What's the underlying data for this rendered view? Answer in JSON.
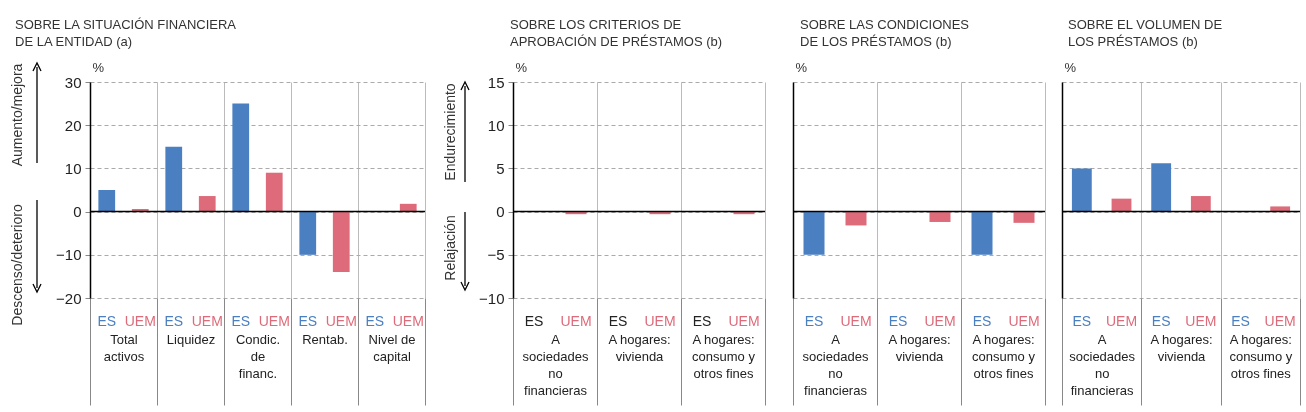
{
  "chart_data": [
    {
      "type": "bar",
      "title": "SOBRE LA SITUACIÓN FINANCIERA DE LA ENTIDAD (a)",
      "ylabel": "%",
      "categories": [
        "Total activos",
        "Liquidez",
        "Condic. de financ.",
        "Rentab.",
        "Nivel de capital"
      ],
      "series": [
        {
          "name": "ES",
          "color": "#4a7fc1",
          "values": [
            5,
            15,
            25,
            -10,
            0
          ]
        },
        {
          "name": "UEM",
          "color": "#dd6b7a",
          "values": [
            0.6,
            3.6,
            9,
            -14,
            1.8
          ]
        }
      ],
      "ylim": [
        -20,
        30
      ],
      "yticks": [
        -20,
        -10,
        0,
        10,
        20,
        30
      ],
      "grid": true,
      "legend": false,
      "ref_lines": [
        {
          "axis": "y",
          "value": 0,
          "color": "#000000"
        }
      ],
      "annotations": [
        "Aumento/mejora",
        "Descenso/deterioro"
      ]
    },
    {
      "type": "bar",
      "title": "SOBRE LOS CRITERIOS DE APROBACIÓN DE PRÉSTAMOS (b)",
      "ylabel": "%",
      "categories": [
        "A sociedades no financieras",
        "A hogares: vivienda",
        "A hogares: consumo y otros fines"
      ],
      "series": [
        {
          "name": "ES",
          "values": [
            0,
            0,
            0
          ]
        },
        {
          "name": "UEM",
          "color": "#dd6b7a",
          "values": [
            -0.3,
            -0.3,
            -0.3
          ]
        }
      ],
      "ylim": [
        -10,
        15
      ],
      "yticks": [
        -10,
        -5,
        0,
        5,
        10,
        15
      ],
      "grid": true,
      "legend": false,
      "ref_lines": [
        {
          "axis": "y",
          "value": 0,
          "color": "#000000"
        }
      ],
      "annotations": [
        "Endurecimiento",
        "Relajación"
      ]
    },
    {
      "type": "bar",
      "title": "SOBRE LAS CONDICIONES DE LOS PRÉSTAMOS (b)",
      "ylabel": "%",
      "categories": [
        "A sociedades no financieras",
        "A hogares: vivienda",
        "A hogares: consumo y otros fines"
      ],
      "series": [
        {
          "name": "ES",
          "color": "#4a7fc1",
          "values": [
            -5,
            0,
            -5
          ]
        },
        {
          "name": "UEM",
          "color": "#dd6b7a",
          "values": [
            -1.6,
            -1.2,
            -1.3
          ]
        }
      ],
      "ylim": [
        -10,
        15
      ],
      "yticks": [
        -10,
        -5,
        0,
        5,
        10,
        15
      ],
      "grid": true,
      "legend": false,
      "tick_labels": "x",
      "ref_lines": [
        {
          "axis": "y",
          "value": 0,
          "color": "#000000"
        }
      ]
    },
    {
      "type": "bar",
      "title": "SOBRE EL VOLUMEN DE LOS PRÉSTAMOS (b)",
      "ylabel": "%",
      "categories": [
        "A sociedades no financieras",
        "A hogares: vivienda",
        "A hogares: consumo y otros fines"
      ],
      "series": [
        {
          "name": "ES",
          "color": "#4a7fc1",
          "values": [
            5,
            5.6,
            0
          ]
        },
        {
          "name": "UEM",
          "color": "#dd6b7a",
          "values": [
            1.5,
            1.8,
            0.6
          ]
        }
      ],
      "ylim": [
        -10,
        15
      ],
      "yticks": [
        -10,
        -5,
        0,
        5,
        10,
        15
      ],
      "grid": true,
      "legend": false,
      "tick_labels": "x",
      "ref_lines": [
        {
          "axis": "y",
          "value": 0,
          "color": "#000000"
        }
      ]
    }
  ]
}
